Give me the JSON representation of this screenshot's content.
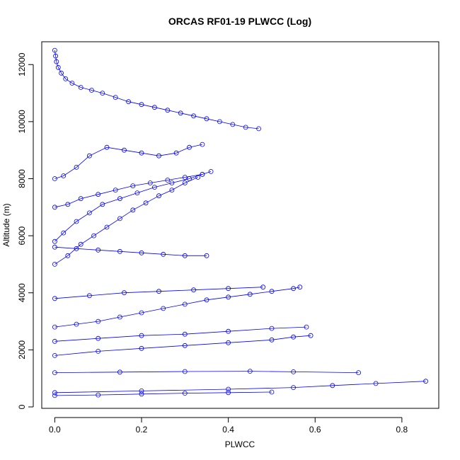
{
  "chart_data": {
    "type": "line",
    "title": "ORCAS RF01-19 PLWCC (Log)",
    "xlabel": "PLWCC",
    "ylabel": "Altitude (m)",
    "xlim": [
      -0.03,
      0.885
    ],
    "ylim": [
      -50,
      12800
    ],
    "x_ticks": [
      0,
      0.2,
      0.4,
      0.6,
      0.8
    ],
    "x_tick_labels": [
      "0.0",
      "0.2",
      "0.4",
      "0.6",
      "0.8"
    ],
    "y_ticks": [
      0,
      2000,
      4000,
      6000,
      8000,
      10000,
      12000
    ],
    "y_tick_labels": [
      "0",
      "2000",
      "4000",
      "6000",
      "8000",
      "10000",
      "12000"
    ],
    "grid": false,
    "legend": "none",
    "series_color": "#0000ff",
    "marker": "open-circle",
    "series": [
      {
        "x": [
          0.0,
          0.002,
          0.004,
          0.008,
          0.015,
          0.025,
          0.04,
          0.06,
          0.085,
          0.11,
          0.14,
          0.17,
          0.2,
          0.23,
          0.26,
          0.29,
          0.32,
          0.35,
          0.38,
          0.41,
          0.44,
          0.47
        ],
        "y": [
          12500,
          12300,
          12100,
          11900,
          11700,
          11500,
          11350,
          11200,
          11100,
          11000,
          10850,
          10700,
          10600,
          10500,
          10400,
          10300,
          10200,
          10100,
          10000,
          9900,
          9800,
          9750
        ]
      },
      {
        "x": [
          0.0,
          0.02,
          0.05,
          0.08,
          0.12,
          0.16,
          0.2,
          0.24,
          0.28,
          0.31,
          0.34
        ],
        "y": [
          8000,
          8100,
          8400,
          8800,
          9100,
          9000,
          8900,
          8800,
          8900,
          9100,
          9200
        ]
      },
      {
        "x": [
          0.0,
          0.03,
          0.06,
          0.1,
          0.14,
          0.18,
          0.22,
          0.26,
          0.3,
          0.34,
          0.36
        ],
        "y": [
          7000,
          7100,
          7300,
          7450,
          7600,
          7750,
          7850,
          7950,
          8050,
          8150,
          8250
        ]
      },
      {
        "x": [
          0.0,
          0.02,
          0.05,
          0.08,
          0.11,
          0.15,
          0.19,
          0.23,
          0.27,
          0.31,
          0.34
        ],
        "y": [
          5800,
          6100,
          6500,
          6800,
          7100,
          7300,
          7500,
          7700,
          7850,
          8000,
          8150
        ]
      },
      {
        "x": [
          0.0,
          0.03,
          0.06,
          0.09,
          0.12,
          0.15,
          0.18,
          0.21,
          0.24,
          0.27,
          0.3,
          0.33
        ],
        "y": [
          5000,
          5300,
          5700,
          6000,
          6300,
          6600,
          6900,
          7150,
          7400,
          7600,
          7850,
          8050
        ]
      },
      {
        "x": [
          0.0,
          0.05,
          0.1,
          0.15,
          0.2,
          0.25,
          0.3,
          0.35
        ],
        "y": [
          5600,
          5550,
          5500,
          5450,
          5400,
          5350,
          5300,
          5300
        ]
      },
      {
        "x": [
          0.0,
          0.05,
          0.1,
          0.15,
          0.2,
          0.25,
          0.3,
          0.35,
          0.4,
          0.45,
          0.5,
          0.55,
          0.565
        ],
        "y": [
          2800,
          2900,
          3000,
          3150,
          3300,
          3450,
          3600,
          3750,
          3850,
          3950,
          4050,
          4150,
          4200
        ]
      },
      {
        "x": [
          0.0,
          0.1,
          0.2,
          0.3,
          0.4,
          0.5,
          0.55,
          0.59
        ],
        "y": [
          1800,
          1950,
          2050,
          2150,
          2250,
          2350,
          2450,
          2500
        ]
      },
      {
        "x": [
          0.0,
          0.1,
          0.2,
          0.3,
          0.4,
          0.5,
          0.58
        ],
        "y": [
          2300,
          2400,
          2500,
          2550,
          2650,
          2750,
          2800
        ]
      },
      {
        "x": [
          0.0,
          0.15,
          0.3,
          0.45,
          0.55,
          0.7
        ],
        "y": [
          1200,
          1220,
          1240,
          1250,
          1230,
          1200
        ]
      },
      {
        "x": [
          0.0,
          0.2,
          0.4,
          0.55,
          0.64,
          0.74,
          0.855
        ],
        "y": [
          500,
          560,
          620,
          680,
          750,
          820,
          900
        ]
      },
      {
        "x": [
          0.0,
          0.1,
          0.2,
          0.3,
          0.4,
          0.5
        ],
        "y": [
          400,
          420,
          450,
          480,
          500,
          520
        ]
      },
      {
        "x": [
          0.0,
          0.08,
          0.16,
          0.24,
          0.32,
          0.4,
          0.48
        ],
        "y": [
          3800,
          3900,
          4000,
          4050,
          4100,
          4150,
          4200
        ]
      }
    ]
  }
}
